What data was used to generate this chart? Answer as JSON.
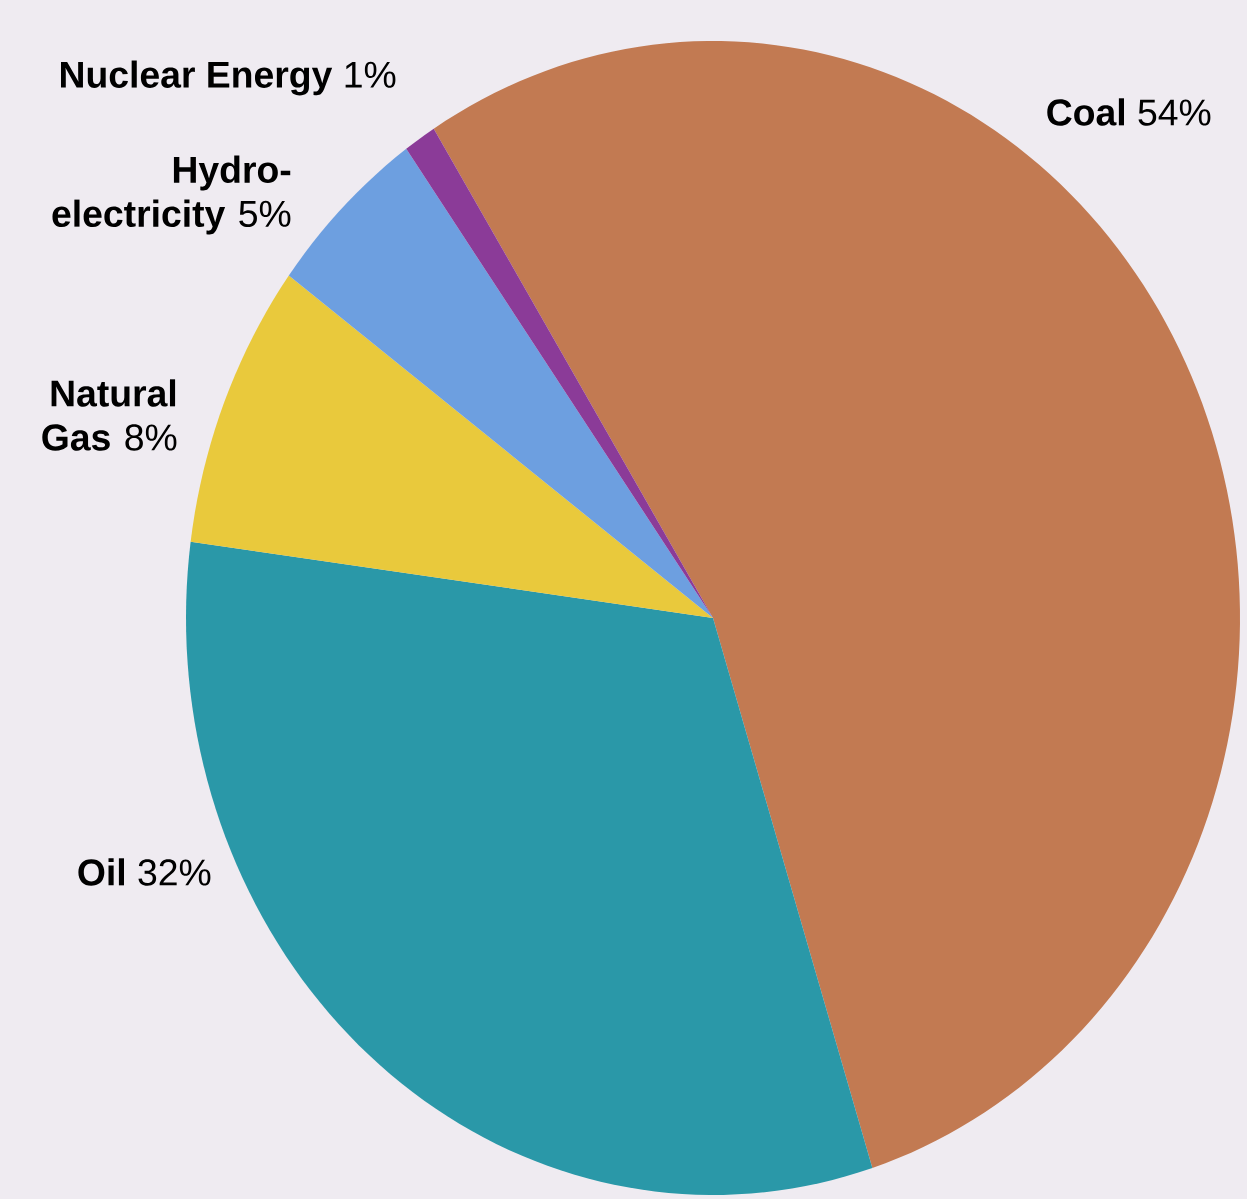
{
  "chart_data": {
    "type": "pie",
    "categories": [
      "Coal",
      "Oil",
      "Natural Gas",
      "Hydro-electricity",
      "Nuclear Energy"
    ],
    "values": [
      54,
      32,
      8,
      5,
      1
    ],
    "value_labels": [
      "54%",
      "32%",
      "8%",
      "5%",
      "1%"
    ],
    "colors": [
      "#c27a52",
      "#2a98a8",
      "#e9c93c",
      "#6d9fe0",
      "#8b3b98"
    ]
  }
}
